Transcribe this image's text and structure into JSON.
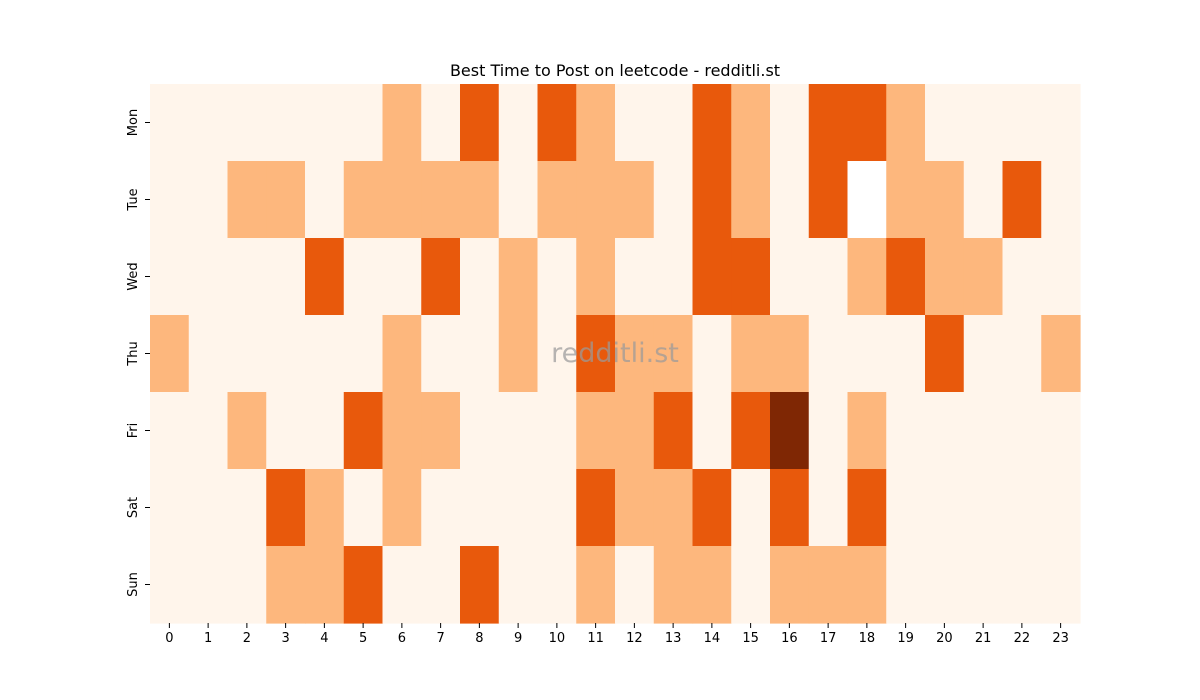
{
  "chart_data": {
    "type": "heatmap",
    "title": "Best Time to Post on leetcode - redditli.st",
    "watermark": "redditli.st",
    "x_categories": [
      "0",
      "1",
      "2",
      "3",
      "4",
      "5",
      "6",
      "7",
      "8",
      "9",
      "10",
      "11",
      "12",
      "13",
      "14",
      "15",
      "16",
      "17",
      "18",
      "19",
      "20",
      "21",
      "22",
      "23"
    ],
    "y_categories": [
      "Mon",
      "Tue",
      "Wed",
      "Thu",
      "Fri",
      "Sat",
      "Sun"
    ],
    "values": [
      [
        0,
        0,
        0,
        0,
        0,
        0,
        1,
        0,
        2,
        0,
        2,
        1,
        0,
        0,
        2,
        1,
        0,
        2,
        2,
        1,
        0,
        0,
        0,
        0
      ],
      [
        0,
        0,
        1,
        1,
        0,
        1,
        1,
        1,
        1,
        0,
        1,
        1,
        1,
        0,
        2,
        1,
        0,
        2,
        -1,
        1,
        1,
        0,
        2,
        0
      ],
      [
        0,
        0,
        0,
        0,
        2,
        0,
        0,
        2,
        0,
        1,
        0,
        1,
        0,
        0,
        2,
        2,
        0,
        0,
        1,
        2,
        1,
        1,
        0,
        0
      ],
      [
        1,
        0,
        0,
        0,
        0,
        0,
        1,
        0,
        0,
        1,
        0,
        2,
        1,
        1,
        0,
        1,
        1,
        0,
        0,
        0,
        2,
        0,
        0,
        1
      ],
      [
        0,
        0,
        1,
        0,
        0,
        2,
        1,
        1,
        0,
        0,
        0,
        1,
        1,
        2,
        0,
        2,
        3,
        0,
        1,
        0,
        0,
        0,
        0,
        0
      ],
      [
        0,
        0,
        0,
        2,
        1,
        0,
        1,
        0,
        0,
        0,
        0,
        2,
        1,
        1,
        2,
        0,
        2,
        0,
        2,
        0,
        0,
        0,
        0,
        0
      ],
      [
        0,
        0,
        0,
        1,
        1,
        2,
        0,
        0,
        2,
        0,
        0,
        1,
        0,
        1,
        1,
        0,
        1,
        1,
        1,
        0,
        0,
        0,
        0,
        0
      ]
    ],
    "color_scale": [
      "#fff5eb",
      "#fdb77d",
      "#e8590c",
      "#7f2704"
    ],
    "missing_color": "#ffffff",
    "colorbar": false,
    "grid": false
  }
}
